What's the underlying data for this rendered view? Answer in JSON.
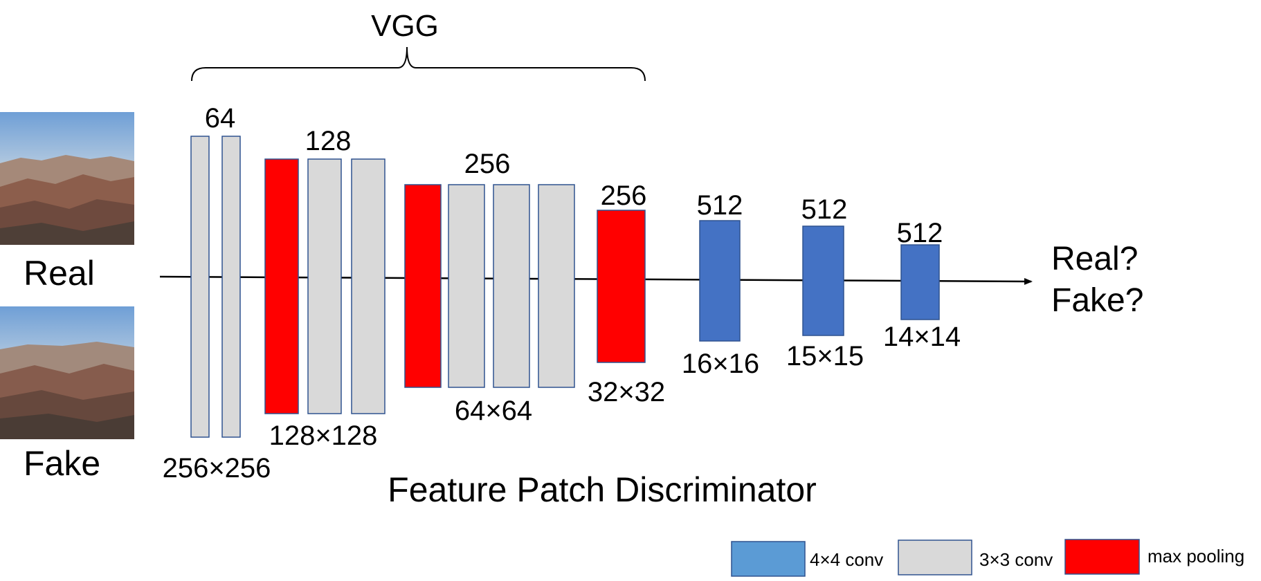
{
  "title": "VGG",
  "caption": "Feature Patch Discriminator",
  "inputs": {
    "real_label": "Real",
    "fake_label": "Fake"
  },
  "output": {
    "line1": "Real?",
    "line2": "Fake?"
  },
  "colors": {
    "conv3": "#d9d9d9",
    "conv4": "#4472c4",
    "pool": "#ff0000",
    "border": "#2f528f",
    "legend_conv4": "#5b9bd5"
  },
  "layers": {
    "b1": {
      "channels": "64",
      "size": "256×256"
    },
    "b2": {
      "channels": "128",
      "size": "128×128"
    },
    "b3": {
      "channels": "256",
      "size": "64×64"
    },
    "b4": {
      "channels": "256",
      "size": "32×32"
    },
    "b5": {
      "channels": "512",
      "size": "16×16"
    },
    "b6": {
      "channels": "512",
      "size": "15×15"
    },
    "b7": {
      "channels": "512",
      "size": "14×14"
    }
  },
  "legend": {
    "conv4": "4×4 conv",
    "conv3": "3×3 conv",
    "pool": "max pooling"
  }
}
